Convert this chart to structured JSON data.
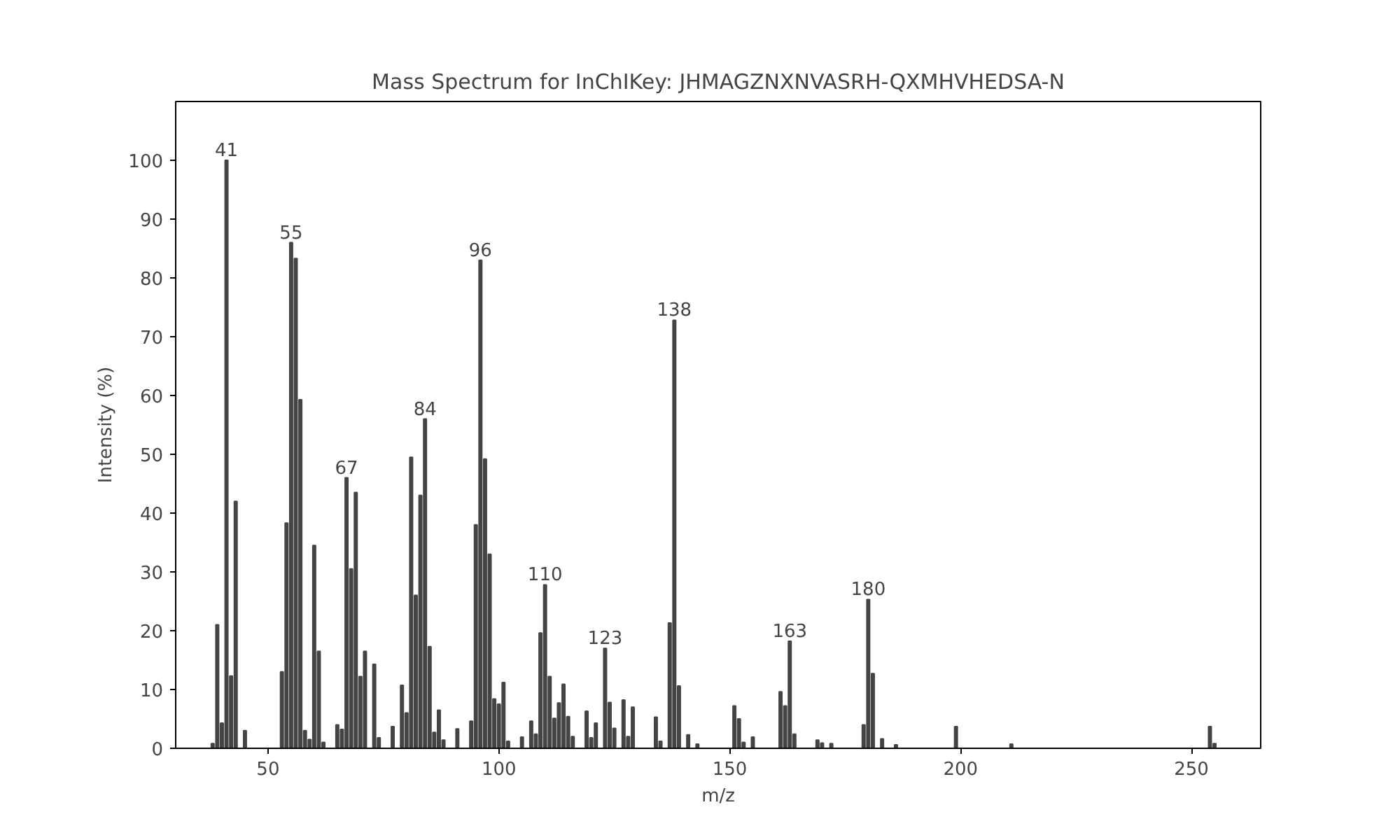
{
  "chart_data": {
    "type": "bar",
    "title": "Mass Spectrum for InChIKey: JHMAGZNXNVASRH-QXMHVHEDSA-N",
    "xlabel": "m/z",
    "ylabel": "Intensity (%)",
    "x": [
      38,
      39,
      40,
      41,
      42,
      43,
      45,
      53,
      54,
      55,
      56,
      57,
      58,
      59,
      60,
      61,
      62,
      65,
      66,
      67,
      68,
      69,
      70,
      71,
      73,
      74,
      77,
      79,
      80,
      81,
      82,
      83,
      84,
      85,
      86,
      87,
      88,
      91,
      94,
      95,
      96,
      97,
      98,
      99,
      100,
      101,
      102,
      105,
      107,
      108,
      109,
      110,
      111,
      112,
      113,
      114,
      115,
      116,
      119,
      120,
      121,
      123,
      124,
      125,
      127,
      128,
      129,
      134,
      135,
      137,
      138,
      139,
      141,
      143,
      151,
      152,
      153,
      155,
      161,
      162,
      163,
      164,
      169,
      170,
      172,
      179,
      180,
      181,
      183,
      186,
      199,
      211,
      254,
      255
    ],
    "values": [
      0.8,
      21,
      4.3,
      100,
      12.3,
      42,
      3,
      13,
      38.3,
      86,
      83.3,
      59.3,
      3,
      1.5,
      34.5,
      16.5,
      1,
      4,
      3.2,
      46,
      30.5,
      43.5,
      12.2,
      16.5,
      14.3,
      1.8,
      3.7,
      10.7,
      6,
      49.5,
      26,
      43,
      56,
      17.3,
      2.7,
      6.5,
      1.4,
      3.3,
      4.6,
      38,
      83,
      49.2,
      33,
      8.4,
      7.5,
      11.2,
      1.2,
      1.9,
      4.6,
      2.4,
      19.6,
      27.8,
      12.2,
      5.1,
      7.7,
      10.9,
      5.4,
      2,
      6.3,
      1.8,
      4.3,
      17,
      7.8,
      3.4,
      8.2,
      2,
      7,
      5.3,
      1.2,
      21.3,
      72.8,
      10.6,
      2.3,
      0.7,
      7.2,
      5,
      1,
      1.9,
      9.6,
      7.2,
      18.2,
      2.4,
      1.4,
      0.9,
      0.8,
      4,
      25.3,
      12.7,
      1.6,
      0.6,
      3.7,
      0.7,
      3.7,
      0.8
    ],
    "color": "#444444",
    "annotations": [
      {
        "text": "41",
        "x": 41,
        "y": 100
      },
      {
        "text": "55",
        "x": 55,
        "y": 86
      },
      {
        "text": "67",
        "x": 67,
        "y": 46
      },
      {
        "text": "84",
        "x": 84,
        "y": 56
      },
      {
        "text": "96",
        "x": 96,
        "y": 83
      },
      {
        "text": "110",
        "x": 110,
        "y": 27.8
      },
      {
        "text": "123",
        "x": 123,
        "y": 17
      },
      {
        "text": "138",
        "x": 138,
        "y": 72.8
      },
      {
        "text": "163",
        "x": 163,
        "y": 18.2
      },
      {
        "text": "180",
        "x": 180,
        "y": 25.3
      }
    ],
    "xlim": [
      30,
      265
    ],
    "ylim": [
      0,
      110
    ],
    "xticks": [
      50,
      100,
      150,
      200,
      250
    ],
    "yticks": [
      0,
      10,
      20,
      30,
      40,
      50,
      60,
      70,
      80,
      90,
      100
    ],
    "grid": false
  }
}
